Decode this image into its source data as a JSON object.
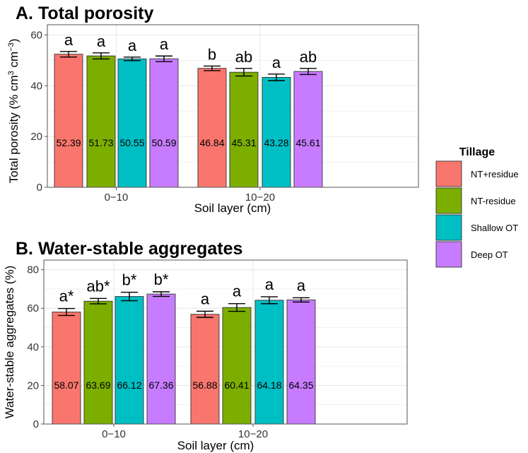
{
  "colors": {
    "NT+residue": "#F8766D",
    "NT-residue": "#7CAE00",
    "Shallow OT": "#00BFC4",
    "Deep OT": "#C77CFF",
    "grid": "#e8e8e8",
    "axis": "#555555"
  },
  "legend": {
    "title": "Tillage",
    "items": [
      "NT+residue",
      "NT-residue",
      "Shallow OT",
      "Deep OT"
    ]
  },
  "chart_data": [
    {
      "type": "bar",
      "title": "A. Total porosity",
      "xlabel": "Soil layer (cm)",
      "ylabel_main": "Total porosity (% cm",
      "ylabel_sup1": "3",
      "ylabel_mid": " cm",
      "ylabel_sup2": "−3",
      "ylabel_end": ")",
      "ylim": [
        0,
        64
      ],
      "yticks": [
        0,
        20,
        40,
        60
      ],
      "categories": [
        "0−10",
        "10−20"
      ],
      "series": [
        {
          "name": "NT+residue",
          "values": [
            52.39,
            46.84
          ],
          "errors": [
            1.1,
            0.9
          ],
          "letters": [
            "a",
            "b"
          ],
          "labels": [
            "52.39",
            "46.84"
          ]
        },
        {
          "name": "NT-residue",
          "values": [
            51.73,
            45.31
          ],
          "errors": [
            1.2,
            1.5
          ],
          "letters": [
            "a",
            "ab"
          ],
          "labels": [
            "51.73",
            "45.31"
          ]
        },
        {
          "name": "Shallow OT",
          "values": [
            50.55,
            43.28
          ],
          "errors": [
            0.7,
            1.3
          ],
          "letters": [
            "a",
            "a"
          ],
          "labels": [
            "50.55",
            "43.28"
          ]
        },
        {
          "name": "Deep OT",
          "values": [
            50.59,
            45.61
          ],
          "errors": [
            1.1,
            1.2
          ],
          "letters": [
            "a",
            "ab"
          ],
          "labels": [
            "50.59",
            "45.61"
          ]
        }
      ]
    },
    {
      "type": "bar",
      "title": "B. Water-stable aggregates",
      "xlabel": "Soil layer (cm)",
      "ylabel_main": "Water-stable aggregates (%)",
      "ylabel_sup1": "",
      "ylabel_mid": "",
      "ylabel_sup2": "",
      "ylabel_end": "",
      "ylim": [
        0,
        85
      ],
      "yticks": [
        0,
        20,
        40,
        60,
        80
      ],
      "categories": [
        "0−10",
        "10−20"
      ],
      "series": [
        {
          "name": "NT+residue",
          "values": [
            58.07,
            56.88
          ],
          "errors": [
            1.8,
            1.6
          ],
          "letters": [
            "a*",
            "a"
          ],
          "labels": [
            "58.07",
            "56.88"
          ]
        },
        {
          "name": "NT-residue",
          "values": [
            63.69,
            60.41
          ],
          "errors": [
            1.4,
            2.0
          ],
          "letters": [
            "ab*",
            "a"
          ],
          "labels": [
            "63.69",
            "60.41"
          ]
        },
        {
          "name": "Shallow OT",
          "values": [
            66.12,
            64.18
          ],
          "errors": [
            2.2,
            1.8
          ],
          "letters": [
            "b*",
            "a"
          ],
          "labels": [
            "66.12",
            "64.18"
          ]
        },
        {
          "name": "Deep OT",
          "values": [
            67.36,
            64.35
          ],
          "errors": [
            1.2,
            1.1
          ],
          "letters": [
            "b*",
            "a"
          ],
          "labels": [
            "67.36",
            "64.35"
          ]
        }
      ]
    }
  ]
}
